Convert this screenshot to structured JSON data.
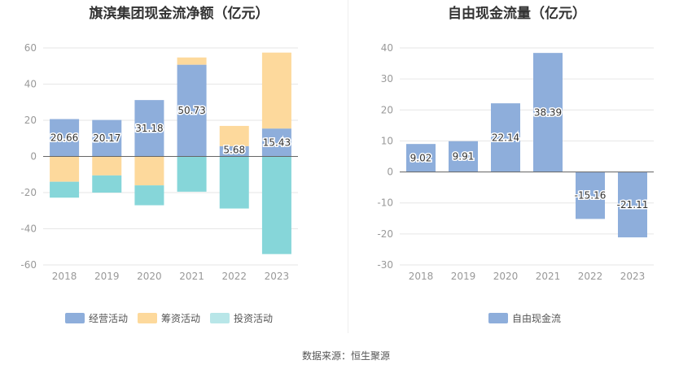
{
  "charts_meta": {
    "colors": {
      "operating": "#8eaedb",
      "financing": "#fdd99c",
      "investing": "#86d6d9",
      "fcf": "#8eaedb",
      "grid": "#e6e6e6",
      "axis_text": "#999999",
      "zero_line": "#666666"
    }
  },
  "source_text": "数据来源：恒生聚源",
  "chart_data": [
    {
      "type": "bar",
      "stacked": true,
      "title": "旗滨集团现金流净额（亿元）",
      "categories": [
        "2018",
        "2019",
        "2020",
        "2021",
        "2022",
        "2023"
      ],
      "series": [
        {
          "name": "经营活动",
          "color_key": "operating",
          "values": [
            20.66,
            20.17,
            31.18,
            50.73,
            5.68,
            15.43
          ],
          "labeled": true
        },
        {
          "name": "筹资活动",
          "color_key": "financing",
          "values": [
            -14.0,
            -10.5,
            -16.0,
            4.0,
            11.2,
            42.0
          ],
          "labeled": false
        },
        {
          "name": "投资活动",
          "color_key": "investing",
          "values": [
            -8.8,
            -9.5,
            -11.0,
            -19.5,
            -28.8,
            -54.0
          ],
          "labeled": false
        }
      ],
      "data_labels": [
        "20.66",
        "20.17",
        "31.18",
        "50.73",
        "5.68",
        "15.43"
      ],
      "ylim": [
        -60,
        60
      ],
      "yticks": [
        60,
        40,
        20,
        0,
        -20,
        -40,
        -60
      ],
      "grid": true,
      "legend": "bottom"
    },
    {
      "type": "bar",
      "stacked": false,
      "title": "自由现金流量（亿元）",
      "categories": [
        "2018",
        "2019",
        "2020",
        "2021",
        "2022",
        "2023"
      ],
      "series": [
        {
          "name": "自由现金流",
          "color_key": "fcf",
          "values": [
            9.02,
            9.91,
            22.14,
            38.39,
            -15.16,
            -21.11
          ],
          "labeled": true
        }
      ],
      "data_labels": [
        "9.02",
        "9.91",
        "22.14",
        "38.39",
        "-15.16",
        "-21.11"
      ],
      "ylim": [
        -30,
        40
      ],
      "yticks": [
        40,
        30,
        20,
        10,
        0,
        -10,
        -20,
        -30
      ],
      "grid": true,
      "legend": "bottom"
    }
  ]
}
